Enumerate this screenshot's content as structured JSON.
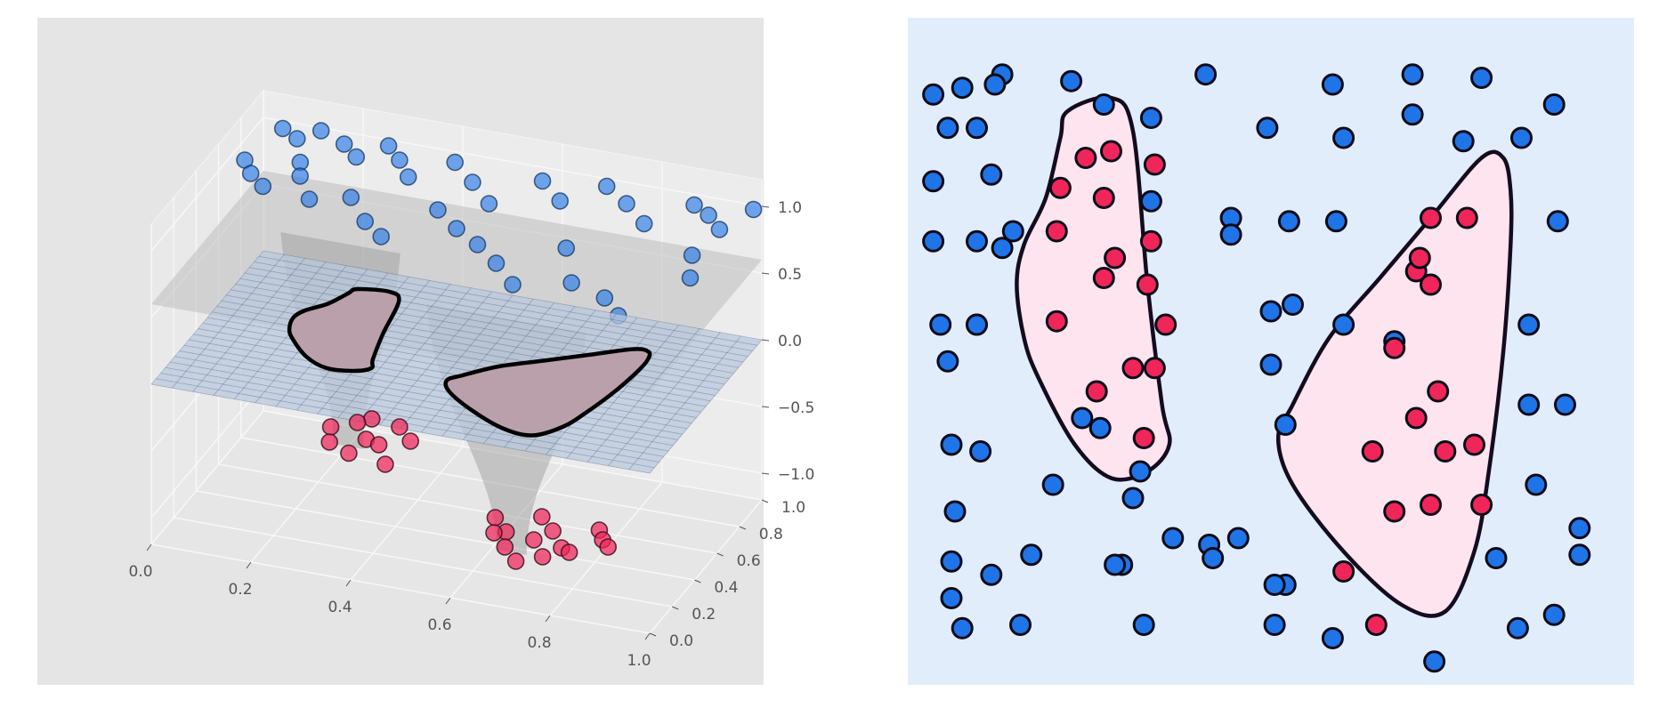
{
  "colors": {
    "figure_bg": "#ffffff",
    "panel3d_bg": "#e5e5e5",
    "panel2d_bg": "#e2edfc",
    "class_pos": "#f0265a",
    "class_neg": "#1f74e8",
    "region_fill": "#fde4ee",
    "boundary": "#140c1e",
    "plane_fill": "#b8c8dd",
    "surface_fill": "#9a9a9a",
    "tick_text": "#555555"
  },
  "chart_data": [
    {
      "type": "scatter",
      "projection": "3d",
      "title": "",
      "xlabel": "",
      "ylabel": "",
      "zlabel": "",
      "xlim": [
        0.0,
        1.0
      ],
      "ylim": [
        0.0,
        1.0
      ],
      "zlim": [
        -1.2,
        1.2
      ],
      "x_ticks": [
        "0.0",
        "0.2",
        "0.4",
        "0.6",
        "0.8",
        "1.0"
      ],
      "y_ticks": [
        "0.0",
        "0.2",
        "0.4",
        "0.6",
        "0.8",
        "1.0"
      ],
      "z_ticks": [
        "1.0",
        "0.5",
        "0.0",
        "−0.5",
        "−1.0"
      ],
      "grid": true,
      "legend": "none",
      "surfaces": [
        "decision function surface",
        "z = 0 plane with decision contour"
      ],
      "series": [
        {
          "class": 1,
          "z": 1.0,
          "x": [
            0.05,
            0.09,
            0.12,
            0.18,
            0.22,
            0.26,
            0.3,
            0.34,
            0.4,
            0.46,
            0.52,
            0.58,
            0.64,
            0.7,
            0.76,
            0.82,
            0.88,
            0.92,
            0.96,
            0.99,
            0.03,
            0.06,
            0.1,
            0.15,
            0.2,
            0.27,
            0.33,
            0.38,
            0.44,
            0.5,
            0.56,
            0.62,
            0.68,
            0.72,
            0.78,
            0.86,
            0.91,
            0.95,
            0.98,
            0.13
          ],
          "y": [
            0.95,
            0.9,
            0.98,
            0.92,
            0.85,
            0.96,
            0.88,
            0.78,
            0.93,
            0.82,
            0.7,
            0.91,
            0.8,
            0.95,
            0.86,
            0.75,
            0.93,
            0.88,
            0.8,
            0.97,
            0.7,
            0.62,
            0.55,
            0.66,
            0.52,
            0.58,
            0.44,
            0.36,
            0.6,
            0.5,
            0.42,
            0.32,
            0.2,
            0.5,
            0.28,
            0.22,
            0.12,
            0.6,
            0.45,
            0.75
          ],
          "fill": "#1f74e8"
        },
        {
          "class": -1,
          "z": -1.0,
          "x": [
            0.18,
            0.22,
            0.26,
            0.3,
            0.34,
            0.2,
            0.25,
            0.29,
            0.33,
            0.24,
            0.6,
            0.64,
            0.68,
            0.72,
            0.76,
            0.8,
            0.84,
            0.66,
            0.7,
            0.74,
            0.78,
            0.82,
            0.62,
            0.7
          ],
          "y": [
            0.8,
            0.86,
            0.76,
            0.88,
            0.8,
            0.7,
            0.65,
            0.74,
            0.62,
            0.9,
            0.4,
            0.32,
            0.46,
            0.38,
            0.28,
            0.44,
            0.34,
            0.22,
            0.3,
            0.2,
            0.26,
            0.38,
            0.3,
            0.14
          ],
          "fill": "#f0265a"
        }
      ]
    },
    {
      "type": "scatter",
      "title": "",
      "xlabel": "",
      "ylabel": "",
      "xlim": [
        0.0,
        1.0
      ],
      "ylim": [
        0.0,
        1.0
      ],
      "axes_visible": false,
      "grid": false,
      "legend": "none",
      "decision_regions": [
        {
          "class": 1,
          "vertices": [
            [
              0.22,
              0.86
            ],
            [
              0.28,
              0.88
            ],
            [
              0.31,
              0.83
            ],
            [
              0.33,
              0.6
            ],
            [
              0.35,
              0.42
            ],
            [
              0.36,
              0.36
            ],
            [
              0.33,
              0.32
            ],
            [
              0.28,
              0.31
            ],
            [
              0.23,
              0.36
            ],
            [
              0.18,
              0.46
            ],
            [
              0.16,
              0.52
            ],
            [
              0.15,
              0.6
            ],
            [
              0.16,
              0.66
            ],
            [
              0.19,
              0.73
            ],
            [
              0.21,
              0.82
            ]
          ]
        },
        {
          "class": 1,
          "vertices": [
            [
              0.79,
              0.79
            ],
            [
              0.82,
              0.79
            ],
            [
              0.83,
              0.74
            ],
            [
              0.83,
              0.66
            ],
            [
              0.82,
              0.5
            ],
            [
              0.8,
              0.32
            ],
            [
              0.78,
              0.2
            ],
            [
              0.74,
              0.11
            ],
            [
              0.68,
              0.12
            ],
            [
              0.6,
              0.2
            ],
            [
              0.53,
              0.3
            ],
            [
              0.51,
              0.37
            ],
            [
              0.53,
              0.42
            ],
            [
              0.58,
              0.52
            ],
            [
              0.65,
              0.61
            ],
            [
              0.72,
              0.7
            ]
          ]
        }
      ],
      "series": [
        {
          "class": -1,
          "fill": "#1f74e8",
          "x": [
            0.035,
            0.075,
            0.13,
            0.225,
            0.27,
            0.41,
            0.585,
            0.695,
            0.79,
            0.89,
            0.055,
            0.095,
            0.335,
            0.495,
            0.6,
            0.695,
            0.765,
            0.845,
            0.035,
            0.115,
            0.335,
            0.445,
            0.035,
            0.13,
            0.445,
            0.525,
            0.59,
            0.895,
            0.045,
            0.095,
            0.5,
            0.53,
            0.6,
            0.855,
            0.055,
            0.095,
            0.5,
            0.06,
            0.24,
            0.52,
            0.855,
            0.905,
            0.1,
            0.32,
            0.415,
            0.065,
            0.2,
            0.31,
            0.365,
            0.455,
            0.865,
            0.925,
            0.06,
            0.17,
            0.295,
            0.42,
            0.52,
            0.81,
            0.925,
            0.06,
            0.115,
            0.285,
            0.505,
            0.075,
            0.155,
            0.325,
            0.505,
            0.585,
            0.725,
            0.84,
            0.89,
            0.095,
            0.12,
            0.145,
            0.265,
            0.67
          ],
          "y": [
            0.885,
            0.895,
            0.915,
            0.905,
            0.87,
            0.915,
            0.9,
            0.915,
            0.91,
            0.87,
            0.835,
            0.835,
            0.85,
            0.835,
            0.82,
            0.855,
            0.815,
            0.82,
            0.755,
            0.765,
            0.725,
            0.7,
            0.665,
            0.655,
            0.675,
            0.695,
            0.695,
            0.695,
            0.54,
            0.54,
            0.56,
            0.57,
            0.54,
            0.54,
            0.485,
            0.54,
            0.48,
            0.36,
            0.4,
            0.39,
            0.42,
            0.42,
            0.35,
            0.32,
            0.21,
            0.26,
            0.3,
            0.28,
            0.22,
            0.22,
            0.3,
            0.235,
            0.185,
            0.195,
            0.18,
            0.19,
            0.15,
            0.19,
            0.195,
            0.13,
            0.165,
            0.18,
            0.15,
            0.085,
            0.09,
            0.09,
            0.09,
            0.07,
            0.035,
            0.085,
            0.105,
            0.665,
            0.9,
            0.68,
            0.385,
            0.515
          ]
        },
        {
          "class": 1,
          "fill": "#f0265a",
          "x": [
            0.245,
            0.28,
            0.34,
            0.21,
            0.27,
            0.335,
            0.205,
            0.27,
            0.285,
            0.33,
            0.205,
            0.355,
            0.34,
            0.26,
            0.325,
            0.31,
            0.72,
            0.77,
            0.7,
            0.72,
            0.67,
            0.73,
            0.78,
            0.7,
            0.64,
            0.74,
            0.67,
            0.72,
            0.79,
            0.6,
            0.645,
            0.705
          ],
          "y": [
            0.79,
            0.8,
            0.78,
            0.745,
            0.73,
            0.665,
            0.68,
            0.61,
            0.64,
            0.6,
            0.545,
            0.54,
            0.475,
            0.44,
            0.37,
            0.475,
            0.7,
            0.7,
            0.62,
            0.6,
            0.505,
            0.44,
            0.36,
            0.4,
            0.35,
            0.35,
            0.26,
            0.27,
            0.27,
            0.17,
            0.09,
            0.64
          ],
          "note_x_fix": null
        }
      ]
    }
  ]
}
